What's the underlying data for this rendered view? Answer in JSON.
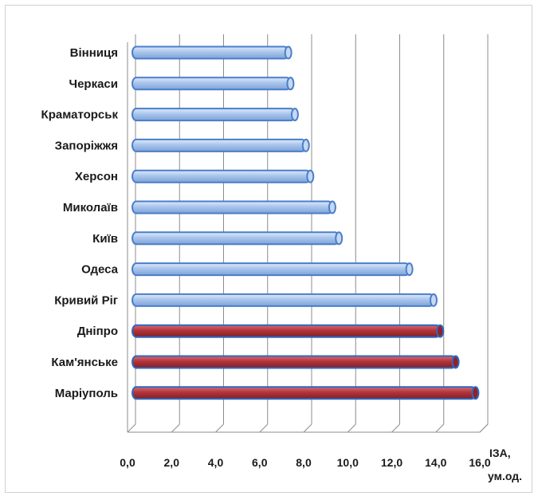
{
  "chart_data": {
    "type": "bar",
    "orientation": "horizontal",
    "style": "3d-cylinder",
    "categories": [
      "Вінниця",
      "Черкаси",
      "Краматорськ",
      "Запоріжжя",
      "Херсон",
      "Миколаїв",
      "Київ",
      "Одеса",
      "Кривий Ріг",
      "Дніпро",
      "Кам'янське",
      "Маріуполь"
    ],
    "values": [
      7.3,
      7.4,
      7.6,
      8.1,
      8.3,
      9.3,
      9.6,
      12.8,
      13.9,
      14.2,
      14.9,
      15.8
    ],
    "highlighted": [
      false,
      false,
      false,
      false,
      false,
      false,
      false,
      false,
      false,
      true,
      true,
      true
    ],
    "xlabel_line1": "ІЗА,",
    "xlabel_line2": "ум.од.",
    "xlim": [
      0,
      16
    ],
    "ticks": [
      "0,0",
      "2,0",
      "4,0",
      "6,0",
      "8,0",
      "10,0",
      "12,0",
      "14,0",
      "16,0"
    ],
    "grid": true,
    "colors": {
      "normal": "#a9c5ec",
      "normal_edge": "#4a7ec9",
      "highlight": "#b3343b",
      "highlight_edge": "#2f68c0",
      "grid": "#8c8c8c"
    }
  }
}
